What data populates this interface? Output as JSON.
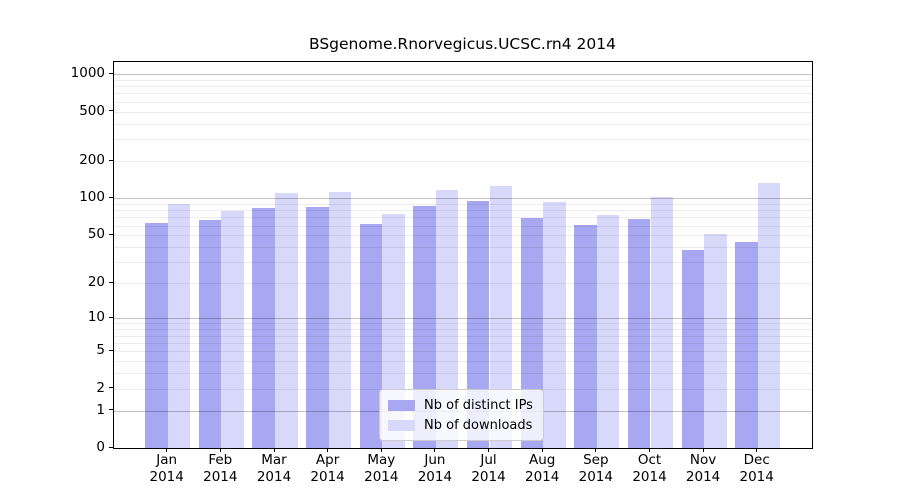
{
  "chart_data": {
    "type": "bar",
    "title": "BSgenome.Rnorvegicus.UCSC.rn4 2014",
    "categories": [
      "Jan",
      "Feb",
      "Mar",
      "Apr",
      "May",
      "Jun",
      "Jul",
      "Aug",
      "Sep",
      "Oct",
      "Nov",
      "Dec"
    ],
    "category_year": "2014",
    "series": [
      {
        "name": "Nb of distinct IPs",
        "color": "#a8a8f2",
        "values": [
          63,
          67,
          84,
          85,
          62,
          86,
          95,
          69,
          61,
          68,
          38,
          44
        ]
      },
      {
        "name": "Nb of downloads",
        "color": "#d8d8fa",
        "values": [
          89,
          79,
          110,
          112,
          75,
          116,
          125,
          93,
          73,
          103,
          51,
          133
        ]
      }
    ],
    "y_scale": "log1p",
    "ylim": [
      0,
      1250
    ],
    "y_ticks": [
      0,
      1,
      2,
      5,
      10,
      20,
      50,
      100,
      200,
      500,
      1000
    ],
    "y_major_gridlines": [
      1,
      10,
      100,
      1000
    ],
    "y_minor_gridlines": [
      2,
      3,
      4,
      5,
      6,
      7,
      8,
      9,
      20,
      30,
      40,
      50,
      60,
      70,
      80,
      90,
      200,
      300,
      400,
      500,
      600,
      700,
      800,
      900
    ],
    "grid": true,
    "legend_position": "lower center",
    "axis_color": "#000000",
    "background_color": "#ffffff"
  }
}
